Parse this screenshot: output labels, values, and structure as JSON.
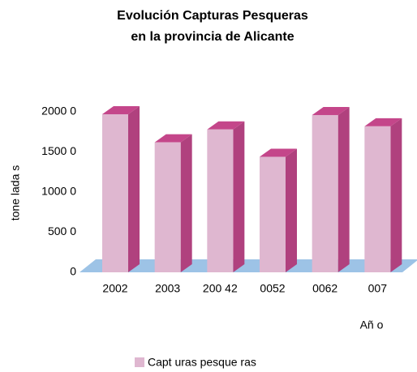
{
  "chart_data": {
    "type": "bar3d",
    "title": "Evolución Capturas Pesqueras",
    "subtitle": "en la provincia de Alicante",
    "y_label": "tone lada s",
    "x_label": "Añ o",
    "categories": [
      "2002",
      "2003",
      "200 42",
      "0052",
      "0062",
      "007"
    ],
    "series": [
      {
        "name": "Capt uras pesque ras",
        "color": "#dfb7d0",
        "values": [
          19700,
          16200,
          17800,
          14400,
          19600,
          18200
        ]
      }
    ],
    "ylim": [
      0,
      20000
    ],
    "yticks": [
      0,
      {
        "value": 5000,
        "label": "500 0"
      },
      {
        "value": 10000,
        "label": "1000 0"
      },
      {
        "value": 15000,
        "label": "1500 0"
      },
      {
        "value": 20000,
        "label": "2000 0"
      }
    ],
    "floor_color": "#9dc3e6",
    "side_color": "#b0417e",
    "top_color": "#c4468a",
    "legend": "bottom"
  }
}
